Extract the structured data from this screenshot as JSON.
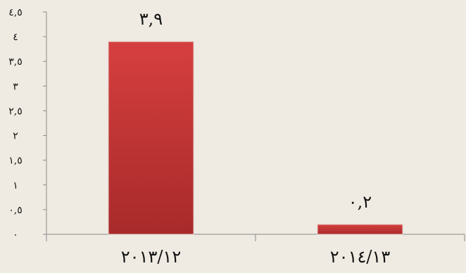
{
  "chart_data": {
    "type": "bar",
    "categories": [
      "٢٠١٣/١٢",
      "٢٠١٤/١٣"
    ],
    "values": [
      3.9,
      0.2
    ],
    "data_labels": [
      "٣,٩",
      "٠,٢"
    ],
    "ylim": [
      0,
      4.5
    ],
    "y_ticks": [
      0,
      0.5,
      1,
      1.5,
      2,
      2.5,
      3,
      3.5,
      4,
      4.5
    ],
    "y_tick_labels": [
      "٠",
      "٠,٥",
      "١",
      "١,٥",
      "٢",
      "٢,٥",
      "٣",
      "٣,٥",
      "٤",
      "٤,٥"
    ],
    "grid": false,
    "legend": "none",
    "bar_color": "#c8373a"
  }
}
